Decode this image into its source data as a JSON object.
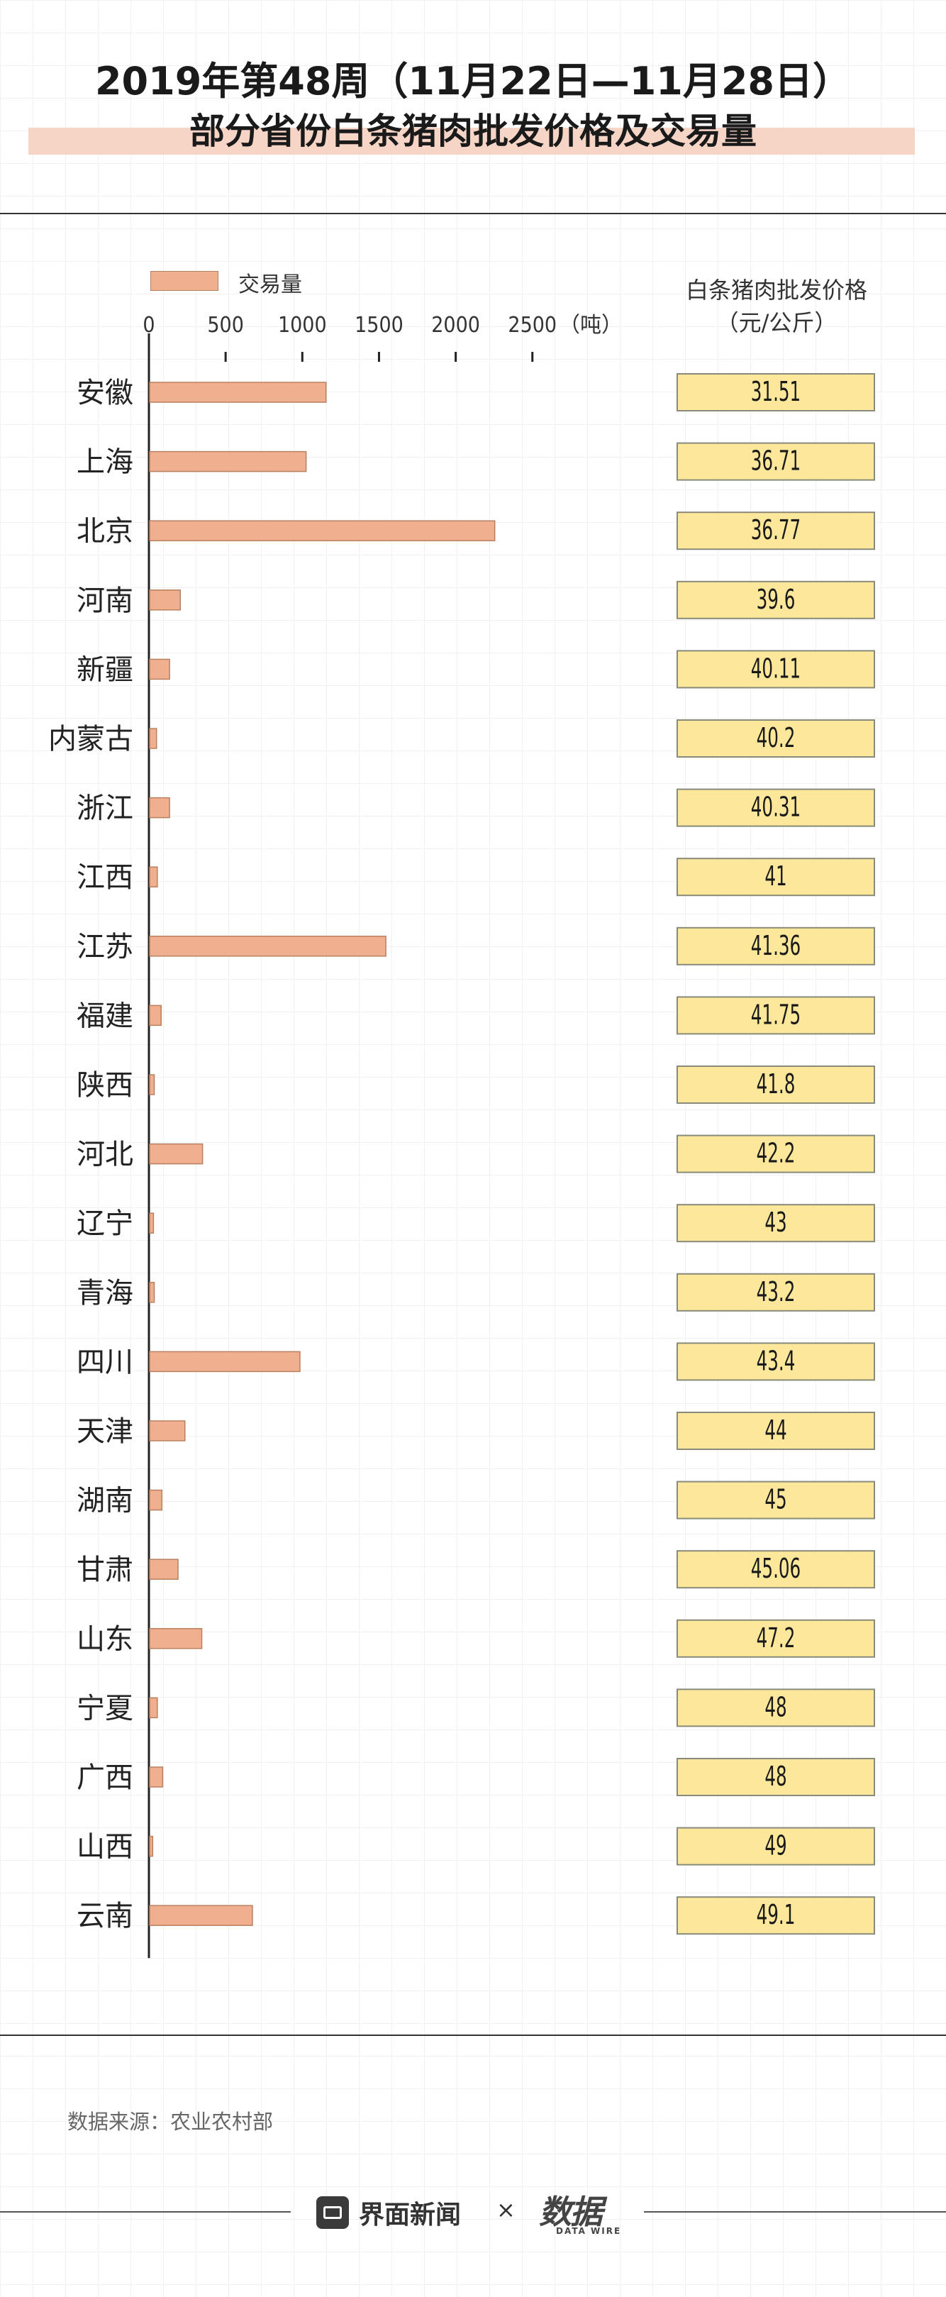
{
  "header": {
    "title_line1": "2019年第48周（11月22日—11月28日）",
    "title_line2": "部分省份白条猪肉批发价格及交易量"
  },
  "legend": {
    "volume_label": "交易量"
  },
  "price_column": {
    "header_line1": "白条猪肉批发价格",
    "header_line2": "（元/公斤）"
  },
  "footer": {
    "source": "数据来源：农业农村部",
    "brand1": "界面新闻",
    "separator": "×",
    "brand2": "数据",
    "brand2_sub": "DATA WIRE"
  },
  "colors": {
    "bar_fill": "#f0b090",
    "bar_stroke": "#b9805f",
    "price_fill": "#fde79a",
    "price_stroke": "#8a8a7a",
    "title_highlight": "#f6d5c6"
  },
  "chart_data": {
    "type": "bar",
    "orientation": "horizontal",
    "x_axis": {
      "ticks": [
        0,
        500,
        1000,
        1500,
        2000,
        2500
      ],
      "unit_label": "（吨）",
      "range": [
        0,
        3100
      ]
    },
    "categories": [
      "安徽",
      "上海",
      "北京",
      "河南",
      "新疆",
      "内蒙古",
      "浙江",
      "江西",
      "江苏",
      "福建",
      "陕西",
      "河北",
      "辽宁",
      "青海",
      "四川",
      "天津",
      "湖南",
      "甘肃",
      "山东",
      "宁夏",
      "广西",
      "山西",
      "云南"
    ],
    "series": [
      {
        "name": "交易量",
        "values": [
          1150,
          1020,
          2250,
          200,
          130,
          45,
          130,
          50,
          1540,
          75,
          30,
          345,
          25,
          30,
          980,
          230,
          80,
          185,
          340,
          50,
          85,
          20,
          670
        ]
      }
    ],
    "prices": [
      "31.51",
      "36.71",
      "36.77",
      "39.6",
      "40.11",
      "40.2",
      "40.31",
      "41",
      "41.36",
      "41.75",
      "41.8",
      "42.2",
      "43",
      "43.2",
      "43.4",
      "44",
      "45",
      "45.06",
      "47.2",
      "48",
      "48",
      "49",
      "49.1"
    ]
  }
}
